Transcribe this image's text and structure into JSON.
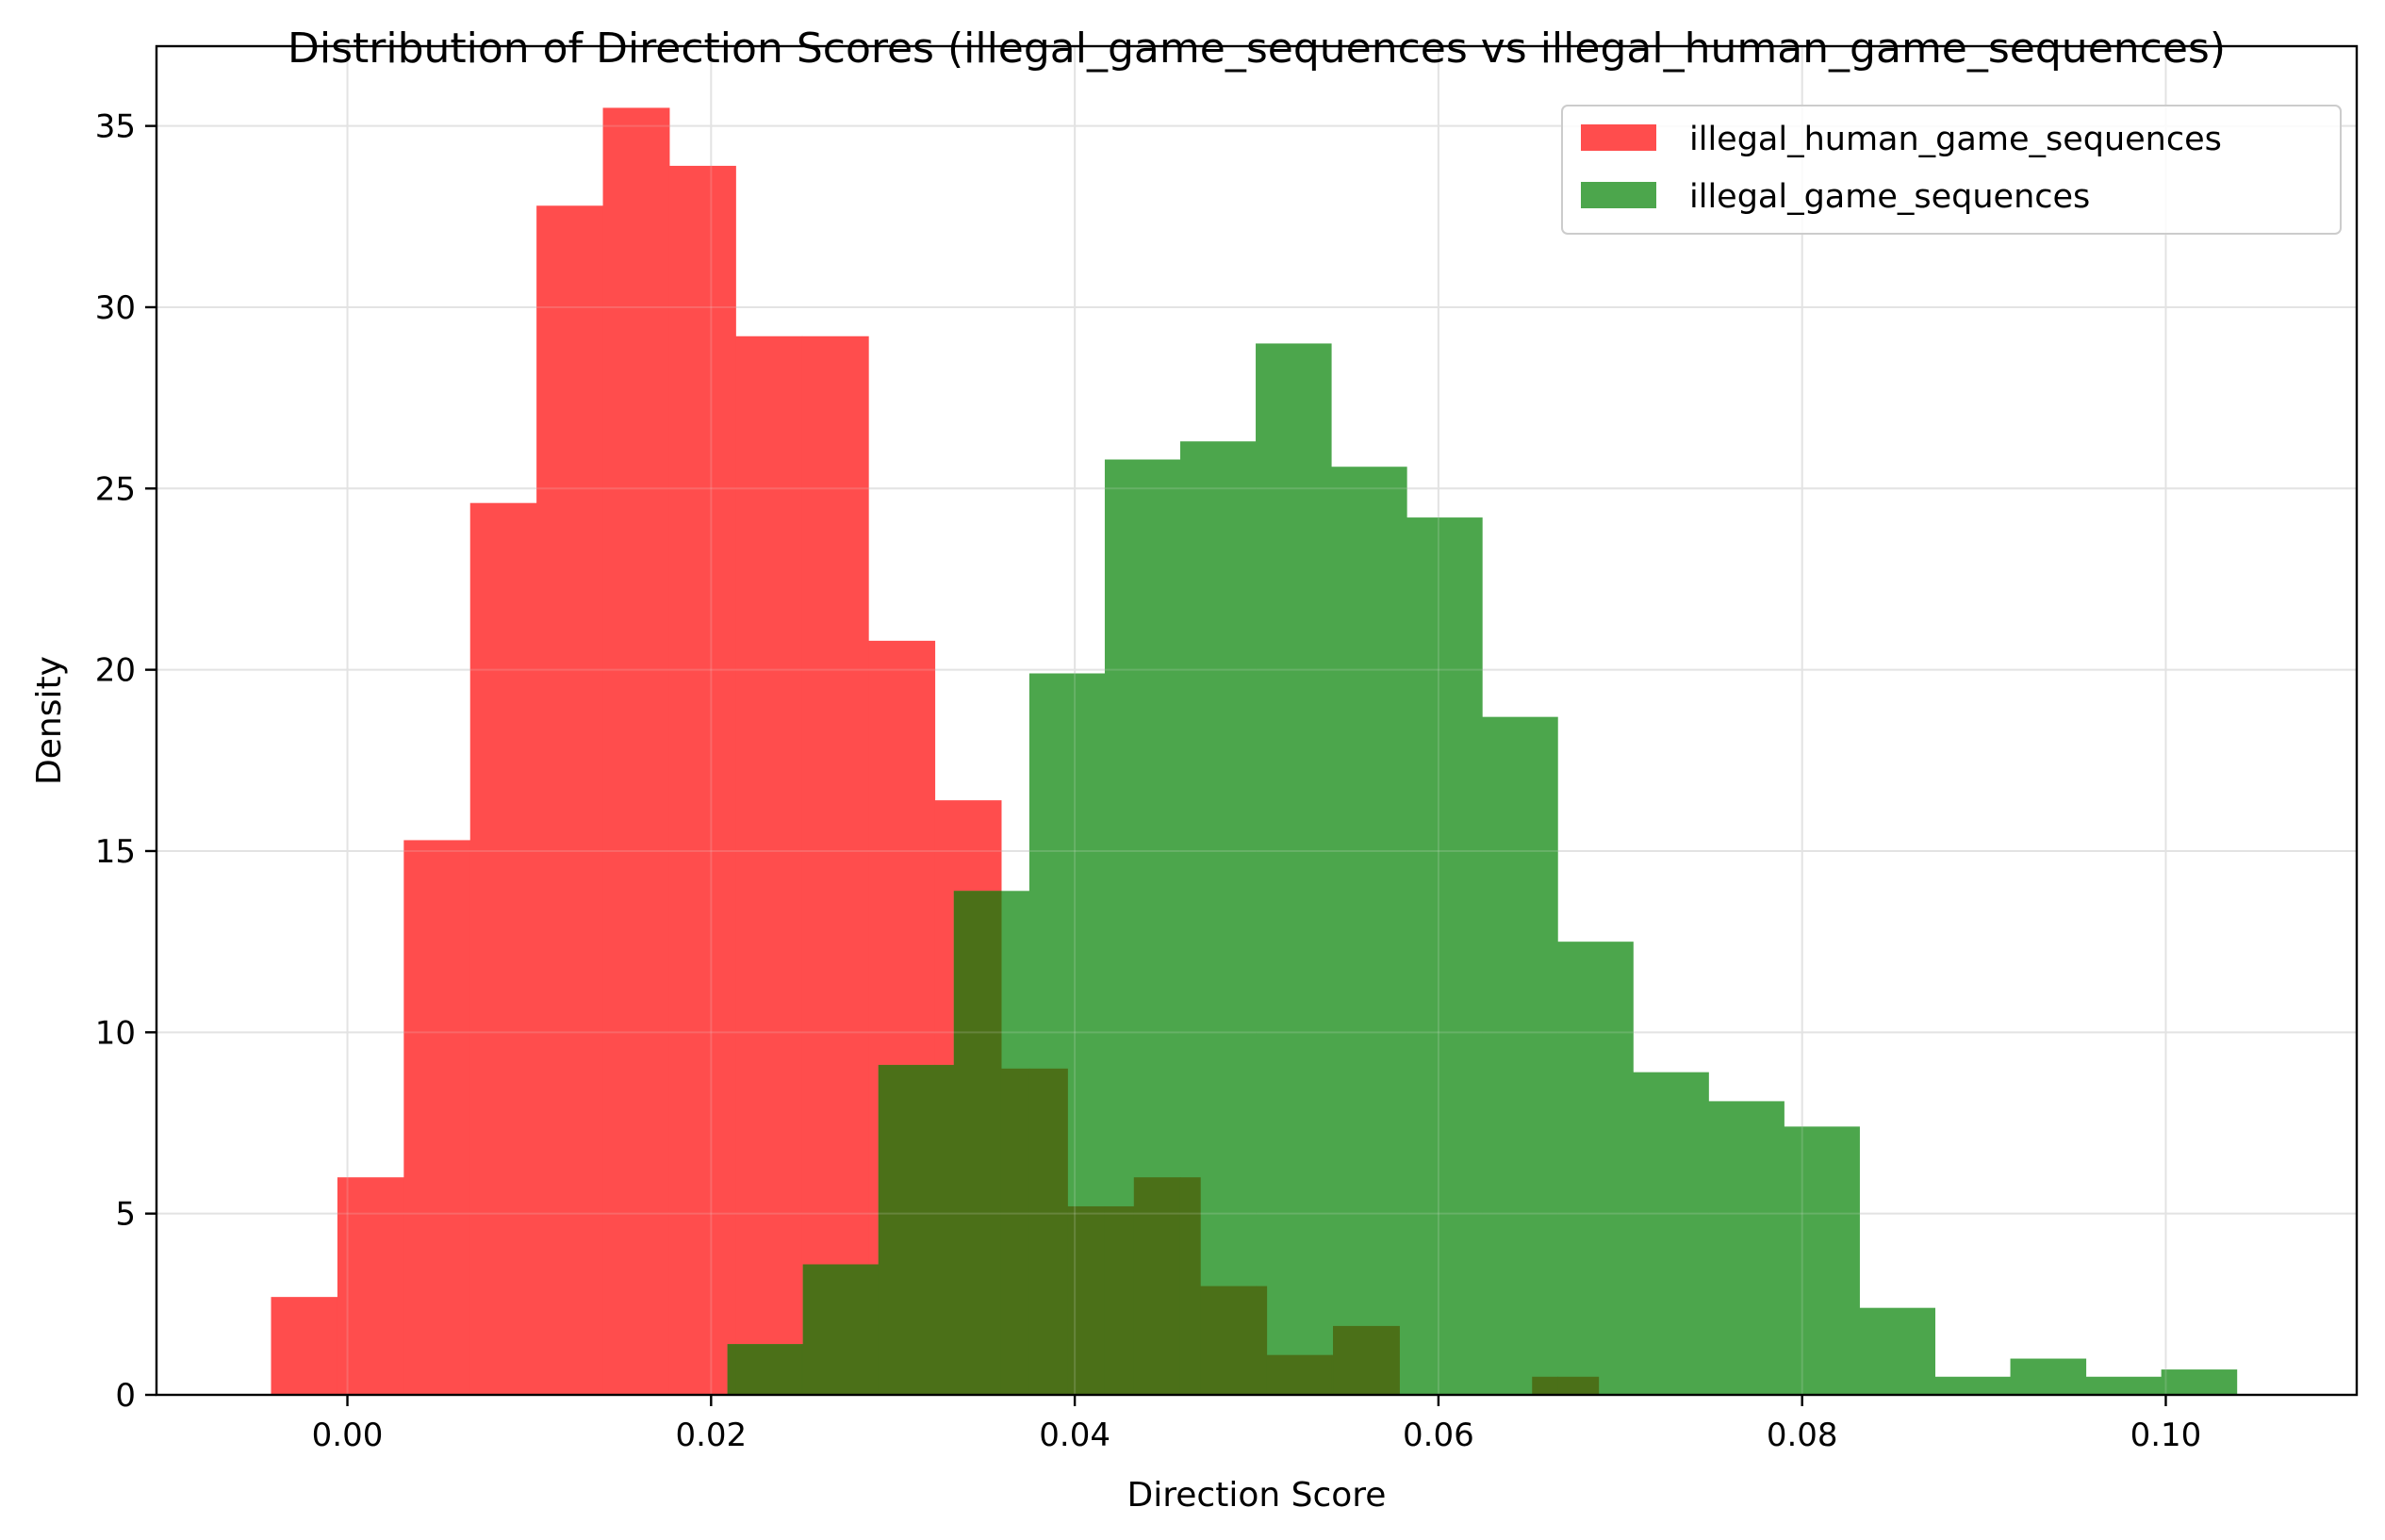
{
  "chart_data": {
    "type": "histogram",
    "title": "Distribution of Direction Scores (illegal_game_sequences vs illegal_human_game_sequences)",
    "xlabel": "Direction Score",
    "ylabel": "Density",
    "xlim": [
      -0.0105,
      0.1105
    ],
    "ylim": [
      0,
      37.2
    ],
    "xticks": [
      0.0,
      0.02,
      0.04,
      0.06,
      0.08,
      0.1
    ],
    "xtick_labels": [
      "0.00",
      "0.02",
      "0.04",
      "0.06",
      "0.08",
      "0.10"
    ],
    "yticks": [
      0,
      5,
      10,
      15,
      20,
      25,
      30,
      35
    ],
    "ytick_labels": [
      "0",
      "5",
      "10",
      "15",
      "20",
      "25",
      "30",
      "35"
    ],
    "grid": true,
    "legend_position": "top-right",
    "overlap_color": "#4b7018",
    "series": [
      {
        "name": "illegal_human_game_sequences",
        "color": "#ff4d4d",
        "bin_edges": [
          -0.0042,
          -0.00055,
          0.0031,
          0.00675,
          0.0104,
          0.01405,
          0.0177,
          0.02135,
          0.025,
          0.02865,
          0.0323,
          0.03595,
          0.0396,
          0.04325,
          0.0469,
          0.05055,
          0.0542,
          0.05785,
          0.0615,
          0.06515,
          0.0688
        ],
        "density": [
          2.7,
          6.0,
          15.3,
          24.6,
          32.8,
          35.5,
          33.9,
          29.2,
          29.2,
          20.8,
          16.4,
          9.0,
          5.2,
          6.0,
          3.0,
          1.1,
          1.9,
          0,
          0,
          0.5
        ]
      },
      {
        "name": "illegal_game_sequences",
        "color": "#4ca64c",
        "bin_edges": [
          0.0209,
          0.02505,
          0.0292,
          0.03335,
          0.0375,
          0.04165,
          0.0458,
          0.04995,
          0.0541,
          0.05825,
          0.0624,
          0.06655,
          0.0707,
          0.07485,
          0.079,
          0.08315,
          0.0873,
          0.09145,
          0.0956,
          0.09975,
          0.1039
        ],
        "density": [
          1.4,
          3.6,
          9.1,
          13.9,
          19.9,
          25.8,
          26.3,
          29.0,
          25.6,
          24.2,
          18.7,
          12.5,
          8.9,
          8.1,
          7.4,
          2.4,
          0.5,
          1.0,
          0.5,
          0.7
        ]
      }
    ]
  }
}
